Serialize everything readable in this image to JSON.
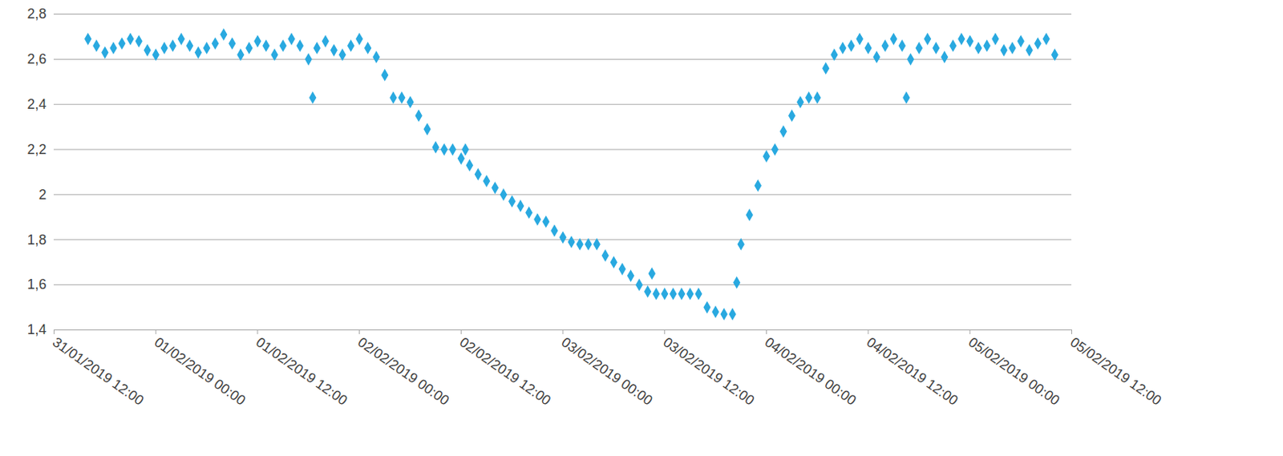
{
  "chart_data": {
    "type": "scatter",
    "color": "#29a9e0",
    "marker": "diamond",
    "grid": true,
    "xlim": [
      "2019-01-31T12:00",
      "2019-02-05T12:00"
    ],
    "xticks": [
      {
        "value": "2019-01-31T12:00",
        "label": "31/01/2019 12:00"
      },
      {
        "value": "2019-02-01T00:00",
        "label": "01/02/2019 00:00"
      },
      {
        "value": "2019-02-01T12:00",
        "label": "01/02/2019 12:00"
      },
      {
        "value": "2019-02-02T00:00",
        "label": "02/02/2019 00:00"
      },
      {
        "value": "2019-02-02T12:00",
        "label": "02/02/2019 12:00"
      },
      {
        "value": "2019-02-03T00:00",
        "label": "03/02/2019 00:00"
      },
      {
        "value": "2019-02-03T12:00",
        "label": "03/02/2019 12:00"
      },
      {
        "value": "2019-02-04T00:00",
        "label": "04/02/2019 00:00"
      },
      {
        "value": "2019-02-04T12:00",
        "label": "04/02/2019 12:00"
      },
      {
        "value": "2019-02-05T00:00",
        "label": "05/02/2019 00:00"
      },
      {
        "value": "2019-02-05T12:00",
        "label": "05/02/2019 12:00"
      }
    ],
    "ylim": [
      1.4,
      2.8
    ],
    "yticks": [
      {
        "value": 1.4,
        "label": "1,4"
      },
      {
        "value": 1.6,
        "label": "1,6"
      },
      {
        "value": 1.8,
        "label": "1,8"
      },
      2,
      {
        "value": 2.2,
        "label": "2,2"
      },
      {
        "value": 2.4,
        "label": "2,4"
      },
      {
        "value": 2.6,
        "label": "2,6"
      },
      {
        "value": 2.8,
        "label": "2,8"
      }
    ],
    "x": [
      "2019-01-31T16:00",
      "2019-01-31T17:00",
      "2019-01-31T18:00",
      "2019-01-31T19:00",
      "2019-01-31T20:00",
      "2019-01-31T21:00",
      "2019-01-31T22:00",
      "2019-01-31T23:00",
      "2019-02-01T00:00",
      "2019-02-01T01:00",
      "2019-02-01T02:00",
      "2019-02-01T03:00",
      "2019-02-01T04:00",
      "2019-02-01T05:00",
      "2019-02-01T06:00",
      "2019-02-01T07:00",
      "2019-02-01T08:00",
      "2019-02-01T09:00",
      "2019-02-01T10:00",
      "2019-02-01T11:00",
      "2019-02-01T12:00",
      "2019-02-01T13:00",
      "2019-02-01T14:00",
      "2019-02-01T15:00",
      "2019-02-01T16:00",
      "2019-02-01T17:00",
      "2019-02-01T18:00",
      "2019-02-01T18:30",
      "2019-02-01T19:00",
      "2019-02-01T20:00",
      "2019-02-01T21:00",
      "2019-02-01T22:00",
      "2019-02-01T23:00",
      "2019-02-02T00:00",
      "2019-02-02T01:00",
      "2019-02-02T02:00",
      "2019-02-02T03:00",
      "2019-02-02T04:00",
      "2019-02-02T05:00",
      "2019-02-02T06:00",
      "2019-02-02T07:00",
      "2019-02-02T08:00",
      "2019-02-02T09:00",
      "2019-02-02T10:00",
      "2019-02-02T11:00",
      "2019-02-02T12:00",
      "2019-02-02T12:30",
      "2019-02-02T13:00",
      "2019-02-02T14:00",
      "2019-02-02T15:00",
      "2019-02-02T16:00",
      "2019-02-02T17:00",
      "2019-02-02T18:00",
      "2019-02-02T19:00",
      "2019-02-02T20:00",
      "2019-02-02T21:00",
      "2019-02-02T22:00",
      "2019-02-02T23:00",
      "2019-02-03T00:00",
      "2019-02-03T01:00",
      "2019-02-03T02:00",
      "2019-02-03T03:00",
      "2019-02-03T04:00",
      "2019-02-03T05:00",
      "2019-02-03T06:00",
      "2019-02-03T07:00",
      "2019-02-03T08:00",
      "2019-02-03T09:00",
      "2019-02-03T10:00",
      "2019-02-03T10:30",
      "2019-02-03T11:00",
      "2019-02-03T12:00",
      "2019-02-03T13:00",
      "2019-02-03T14:00",
      "2019-02-03T15:00",
      "2019-02-03T16:00",
      "2019-02-03T17:00",
      "2019-02-03T18:00",
      "2019-02-03T19:00",
      "2019-02-03T20:00",
      "2019-02-03T20:30",
      "2019-02-03T21:00",
      "2019-02-03T22:00",
      "2019-02-03T23:00",
      "2019-02-04T00:00",
      "2019-02-04T01:00",
      "2019-02-04T02:00",
      "2019-02-04T03:00",
      "2019-02-04T04:00",
      "2019-02-04T05:00",
      "2019-02-04T06:00",
      "2019-02-04T07:00",
      "2019-02-04T08:00",
      "2019-02-04T09:00",
      "2019-02-04T10:00",
      "2019-02-04T11:00",
      "2019-02-04T12:00",
      "2019-02-04T13:00",
      "2019-02-04T14:00",
      "2019-02-04T15:00",
      "2019-02-04T16:00",
      "2019-02-04T16:30",
      "2019-02-04T17:00",
      "2019-02-04T18:00",
      "2019-02-04T19:00",
      "2019-02-04T20:00",
      "2019-02-04T21:00",
      "2019-02-04T22:00",
      "2019-02-04T23:00",
      "2019-02-05T00:00",
      "2019-02-05T01:00",
      "2019-02-05T02:00",
      "2019-02-05T03:00",
      "2019-02-05T04:00",
      "2019-02-05T05:00",
      "2019-02-05T06:00",
      "2019-02-05T07:00",
      "2019-02-05T08:00",
      "2019-02-05T09:00",
      "2019-02-05T10:00"
    ],
    "values": [
      2.69,
      2.66,
      2.63,
      2.65,
      2.67,
      2.69,
      2.68,
      2.64,
      2.62,
      2.65,
      2.66,
      2.69,
      2.66,
      2.63,
      2.65,
      2.67,
      2.71,
      2.67,
      2.62,
      2.65,
      2.68,
      2.66,
      2.62,
      2.66,
      2.69,
      2.66,
      2.6,
      2.43,
      2.65,
      2.68,
      2.64,
      2.62,
      2.66,
      2.69,
      2.65,
      2.61,
      2.53,
      2.43,
      2.43,
      2.41,
      2.35,
      2.29,
      2.21,
      2.2,
      2.2,
      2.16,
      2.2,
      2.13,
      2.09,
      2.06,
      2.03,
      2.0,
      1.97,
      1.95,
      1.92,
      1.89,
      1.88,
      1.84,
      1.81,
      1.79,
      1.78,
      1.78,
      1.78,
      1.73,
      1.7,
      1.67,
      1.64,
      1.6,
      1.57,
      1.65,
      1.56,
      1.56,
      1.56,
      1.56,
      1.56,
      1.56,
      1.5,
      1.48,
      1.47,
      1.47,
      1.61,
      1.78,
      1.91,
      2.04,
      2.17,
      2.2,
      2.28,
      2.35,
      2.41,
      2.43,
      2.43,
      2.56,
      2.62,
      2.65,
      2.66,
      2.69,
      2.65,
      2.61,
      2.66,
      2.69,
      2.66,
      2.43,
      2.6,
      2.65,
      2.69,
      2.65,
      2.61,
      2.66,
      2.69,
      2.68,
      2.65,
      2.66,
      2.69,
      2.64,
      2.65,
      2.68,
      2.64,
      2.67,
      2.69,
      2.62
    ]
  }
}
